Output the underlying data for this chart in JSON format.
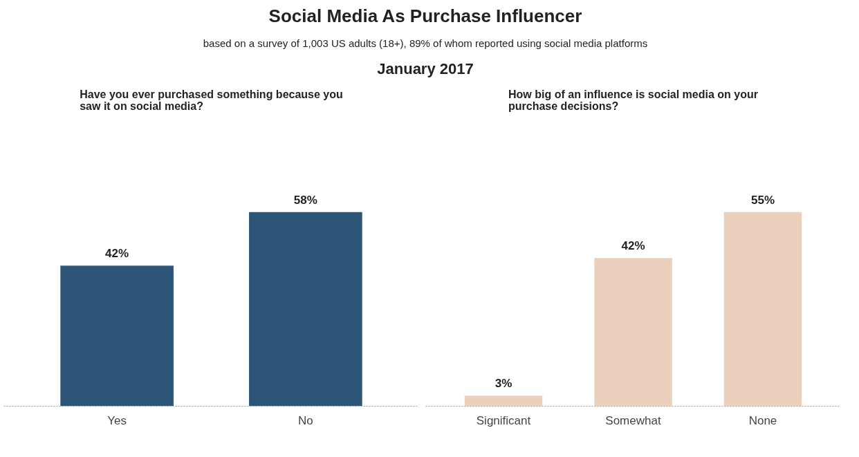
{
  "chart_data": [
    {
      "type": "bar",
      "title": "Have you ever purchased something because you saw it on social media?",
      "categories": [
        "Yes",
        "No"
      ],
      "values": [
        42,
        58
      ],
      "value_labels": [
        "42%",
        "58%"
      ],
      "color": "#2c5577",
      "grid": false,
      "tick_labels": "x",
      "annotations": [
        "Social Media As Purchase Influencer",
        "based on a survey of 1,003 US adults (18+), 89% of whom reported using social media platforms",
        "January 2017"
      ]
    },
    {
      "type": "bar",
      "title": "How big of an influence is social media on your purchase decisions?",
      "categories": [
        "Significant",
        "Somewhat",
        "None"
      ],
      "values": [
        3,
        42,
        55
      ],
      "value_labels": [
        "3%",
        "42%",
        "55%"
      ],
      "color": "#ebd1bd",
      "grid": false,
      "tick_labels": "x"
    }
  ]
}
